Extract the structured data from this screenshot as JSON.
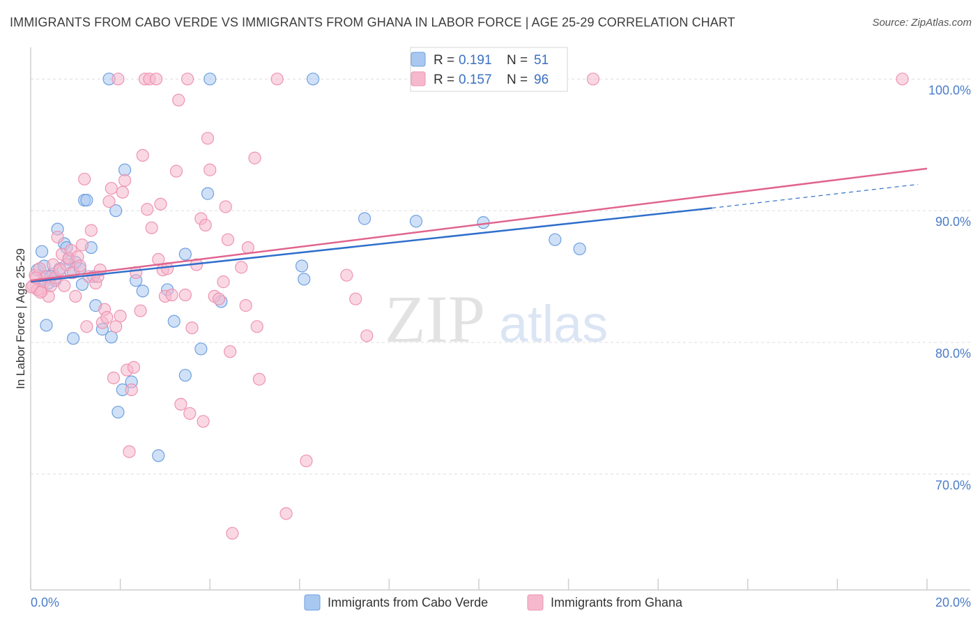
{
  "title": "IMMIGRANTS FROM CABO VERDE VS IMMIGRANTS FROM GHANA IN LABOR FORCE | AGE 25-29 CORRELATION CHART",
  "source": "Source: ZipAtlas.com",
  "watermark": {
    "zip": "ZIP",
    "atlas": "atlas"
  },
  "colors": {
    "blue_fill": "#a9c8f0",
    "blue_stroke": "#6e9fe0",
    "blue_line": "#2f6fcc",
    "pink_fill": "#f5b8cc",
    "pink_stroke": "#ee93b2",
    "pink_line": "#e0648e",
    "tick_text": "#4a7cc9"
  },
  "legend": {
    "r_label": "R =",
    "n_label": "N =",
    "series": [
      {
        "r": "0.191",
        "n": "51"
      },
      {
        "r": "0.157",
        "n": "96"
      }
    ]
  },
  "chart_data": {
    "type": "scatter",
    "xlabel": "",
    "ylabel": "In Labor Force | Age 25-29",
    "xlim": [
      0,
      20
    ],
    "ylim": [
      61.2,
      102.4
    ],
    "x_tick_labels": [
      "0.0%",
      "20.0%"
    ],
    "y_ticks": [
      70,
      80,
      90,
      100
    ],
    "y_tick_labels": [
      "70.0%",
      "80.0%",
      "90.0%",
      "100.0%"
    ],
    "series": [
      {
        "name": "Immigrants from Cabo Verde",
        "color": "blue",
        "trend": {
          "x0": 0.0,
          "y0": 84.6,
          "x1": 15.2,
          "y1": 90.2,
          "dash_to_x": 19.8,
          "dash_to_y": 92.0
        },
        "points": [
          [
            0.15,
            85.5
          ],
          [
            0.25,
            86.9
          ],
          [
            0.3,
            85.8
          ],
          [
            0.35,
            81.3
          ],
          [
            0.4,
            84.5
          ],
          [
            0.5,
            85.2
          ],
          [
            0.55,
            84.7
          ],
          [
            0.6,
            88.6
          ],
          [
            0.75,
            87.5
          ],
          [
            0.8,
            87.2
          ],
          [
            0.85,
            86.3
          ],
          [
            0.9,
            85.3
          ],
          [
            0.95,
            80.3
          ],
          [
            1.1,
            85.6
          ],
          [
            1.15,
            84.4
          ],
          [
            1.2,
            90.8
          ],
          [
            1.25,
            90.8
          ],
          [
            1.35,
            87.2
          ],
          [
            1.4,
            85.0
          ],
          [
            1.45,
            82.8
          ],
          [
            1.6,
            81.0
          ],
          [
            1.75,
            100.0
          ],
          [
            1.8,
            80.4
          ],
          [
            1.9,
            90.0
          ],
          [
            1.95,
            74.7
          ],
          [
            2.05,
            76.4
          ],
          [
            2.1,
            93.1
          ],
          [
            2.25,
            77.0
          ],
          [
            2.35,
            84.7
          ],
          [
            2.5,
            83.9
          ],
          [
            2.85,
            71.4
          ],
          [
            3.05,
            84.0
          ],
          [
            3.2,
            81.6
          ],
          [
            3.45,
            86.7
          ],
          [
            3.45,
            77.5
          ],
          [
            3.8,
            79.5
          ],
          [
            3.95,
            91.3
          ],
          [
            4.0,
            100.0
          ],
          [
            4.25,
            83.1
          ],
          [
            6.05,
            85.8
          ],
          [
            6.1,
            84.8
          ],
          [
            6.3,
            100.0
          ],
          [
            7.45,
            89.4
          ],
          [
            8.6,
            89.2
          ],
          [
            10.1,
            89.1
          ],
          [
            11.7,
            87.8
          ],
          [
            12.25,
            87.1
          ],
          [
            0.3,
            84.8
          ],
          [
            0.65,
            85.6
          ],
          [
            1.0,
            86.1
          ],
          [
            0.45,
            85.0
          ]
        ]
      },
      {
        "name": "Immigrants from Ghana",
        "color": "pink",
        "trend": {
          "x0": 0.0,
          "y0": 84.7,
          "x1": 20.0,
          "y1": 93.2
        },
        "points": [
          [
            0.05,
            84.3
          ],
          [
            0.1,
            85.1
          ],
          [
            0.15,
            84.0
          ],
          [
            0.2,
            85.6
          ],
          [
            0.25,
            83.9
          ],
          [
            0.3,
            84.6
          ],
          [
            0.35,
            85.0
          ],
          [
            0.4,
            83.5
          ],
          [
            0.45,
            84.3
          ],
          [
            0.5,
            85.9
          ],
          [
            0.55,
            84.9
          ],
          [
            0.6,
            88.0
          ],
          [
            0.65,
            85.5
          ],
          [
            0.7,
            86.7
          ],
          [
            0.75,
            84.3
          ],
          [
            0.8,
            85.9
          ],
          [
            0.85,
            86.4
          ],
          [
            0.9,
            87.0
          ],
          [
            0.95,
            85.3
          ],
          [
            1.0,
            83.5
          ],
          [
            1.05,
            86.5
          ],
          [
            1.1,
            85.8
          ],
          [
            1.15,
            87.4
          ],
          [
            1.2,
            92.4
          ],
          [
            1.25,
            81.2
          ],
          [
            1.3,
            85.0
          ],
          [
            1.35,
            88.5
          ],
          [
            1.45,
            84.5
          ],
          [
            1.5,
            85.0
          ],
          [
            1.55,
            85.5
          ],
          [
            1.6,
            81.5
          ],
          [
            1.65,
            82.5
          ],
          [
            1.7,
            81.9
          ],
          [
            1.75,
            90.7
          ],
          [
            1.8,
            91.7
          ],
          [
            1.85,
            77.3
          ],
          [
            1.9,
            81.2
          ],
          [
            1.95,
            100.0
          ],
          [
            2.0,
            82.0
          ],
          [
            2.05,
            91.4
          ],
          [
            2.1,
            92.3
          ],
          [
            2.15,
            77.9
          ],
          [
            2.2,
            71.7
          ],
          [
            2.25,
            76.4
          ],
          [
            2.3,
            78.1
          ],
          [
            2.35,
            85.3
          ],
          [
            2.45,
            82.4
          ],
          [
            2.5,
            94.2
          ],
          [
            2.55,
            100.0
          ],
          [
            2.6,
            90.1
          ],
          [
            2.65,
            100.0
          ],
          [
            2.7,
            88.7
          ],
          [
            2.8,
            100.0
          ],
          [
            2.85,
            86.3
          ],
          [
            2.9,
            90.5
          ],
          [
            2.95,
            85.5
          ],
          [
            3.0,
            83.5
          ],
          [
            3.05,
            85.6
          ],
          [
            3.15,
            83.6
          ],
          [
            3.25,
            93.0
          ],
          [
            3.3,
            98.4
          ],
          [
            3.35,
            75.3
          ],
          [
            3.45,
            83.6
          ],
          [
            3.5,
            100.0
          ],
          [
            3.55,
            74.6
          ],
          [
            3.6,
            81.1
          ],
          [
            3.7,
            85.9
          ],
          [
            3.8,
            89.4
          ],
          [
            3.85,
            74.0
          ],
          [
            3.9,
            88.9
          ],
          [
            3.95,
            95.5
          ],
          [
            4.0,
            93.1
          ],
          [
            4.1,
            83.5
          ],
          [
            4.2,
            83.3
          ],
          [
            4.3,
            84.6
          ],
          [
            4.35,
            90.3
          ],
          [
            4.4,
            87.8
          ],
          [
            4.45,
            79.3
          ],
          [
            4.5,
            65.5
          ],
          [
            4.7,
            85.7
          ],
          [
            4.8,
            82.8
          ],
          [
            4.85,
            87.2
          ],
          [
            5.0,
            94.0
          ],
          [
            5.05,
            81.2
          ],
          [
            5.1,
            77.2
          ],
          [
            5.5,
            100.0
          ],
          [
            5.7,
            67.0
          ],
          [
            6.15,
            71.0
          ],
          [
            7.05,
            85.1
          ],
          [
            7.25,
            83.3
          ],
          [
            7.5,
            80.5
          ],
          [
            12.55,
            100.0
          ],
          [
            19.45,
            100.0
          ],
          [
            0.02,
            84.2
          ],
          [
            0.12,
            84.9
          ],
          [
            0.22,
            83.8
          ]
        ]
      }
    ]
  },
  "bottom_legend": [
    "Immigrants from Cabo Verde",
    "Immigrants from Ghana"
  ]
}
